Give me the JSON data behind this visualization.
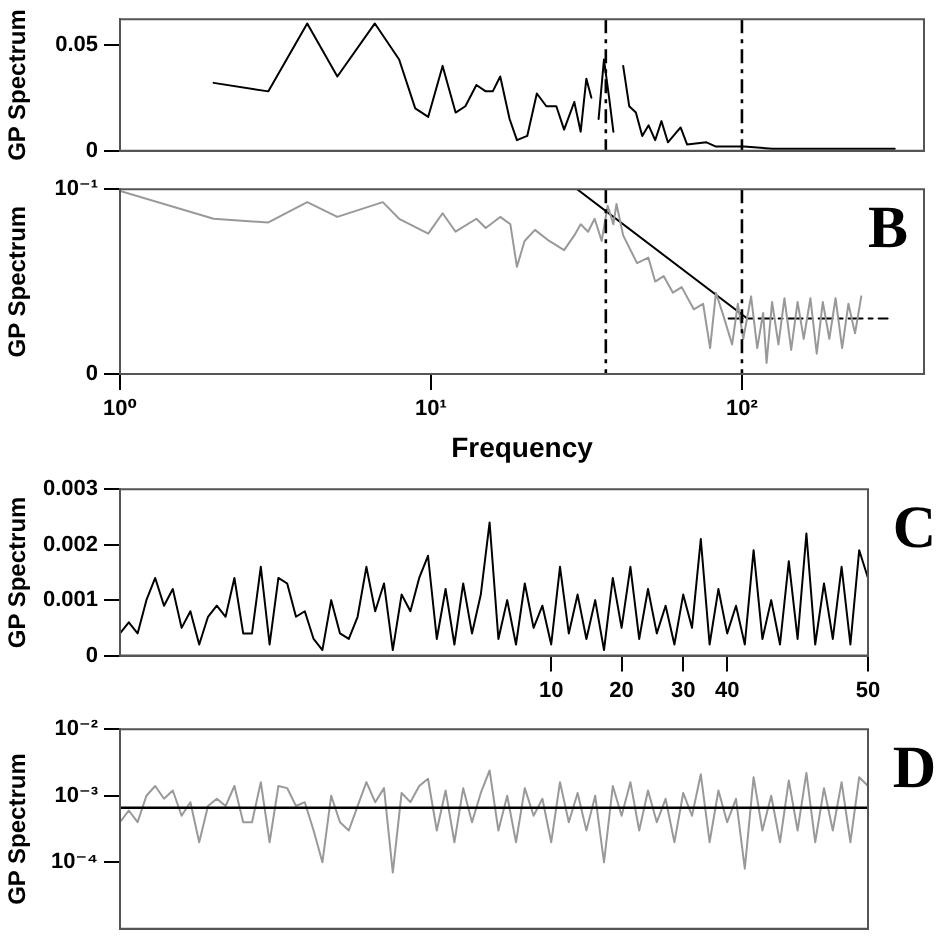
{
  "chart_data": [
    {
      "type": "line",
      "ylabel": "GP Spectrum",
      "log": "x",
      "xlim": [
        1,
        385
      ],
      "ylim": [
        0,
        0.062
      ],
      "yticks": [
        0,
        0.05
      ],
      "tick_labels": "y",
      "grid": false,
      "ref_lines": [
        {
          "axis": "x",
          "value": 36.5,
          "color": "#000000",
          "line_style": "dashed"
        },
        {
          "axis": "x",
          "value": 100,
          "color": "#000000",
          "line_style": "dashed"
        }
      ],
      "series": [
        {
          "color": "#000000",
          "x": [
            2,
            3,
            4,
            5,
            6.6,
            7.9,
            8.9,
            9.8,
            10.9,
            12,
            12.9,
            14,
            15,
            15.8,
            16.7,
            17.9,
            18.9,
            20.4,
            21.9,
            23.5,
            25.3,
            26.8,
            28.9,
            30.3,
            31.6,
            32.8,
            33.6,
            34.6,
            36,
            37.4,
            38.6,
            39.5,
            41.5,
            43.4,
            45.6,
            47.8,
            50.1,
            52.6,
            55.1,
            57.8,
            63.5,
            66.6,
            76.9,
            82.5,
            101.5,
            125,
            310
          ],
          "values": [
            0.032,
            0.028,
            0.06,
            0.035,
            0.06,
            0.043,
            0.02,
            0.016,
            0.04,
            0.018,
            0.021,
            0.031,
            0.028,
            0.028,
            0.035,
            0.015,
            0.005,
            0.007,
            0.027,
            0.021,
            0.021,
            0.01,
            0.023,
            0.009,
            0.034,
            0.025,
            null,
            0.015,
            0.043,
            0.025,
            0.009,
            null,
            0.04,
            0.021,
            0.018,
            0.007,
            0.012,
            0.005,
            0.014,
            0.004,
            0.011,
            0.003,
            0.004,
            0.002,
            0.002,
            0.001,
            0.001
          ]
        }
      ]
    },
    {
      "type": "line",
      "xlabel": "Frequency",
      "ylabel": "GP Spectrum",
      "log": "x",
      "xlim": [
        1,
        385
      ],
      "xticks": [
        {
          "value": 1,
          "label": "10⁰"
        },
        {
          "value": 10,
          "label": "10¹"
        },
        {
          "value": 100,
          "label": "10²"
        }
      ],
      "ylim": [
        0,
        0.1
      ],
      "yticks": [
        0,
        {
          "value": 0.1,
          "label": "10⁻¹"
        }
      ],
      "grid": false,
      "annotations": [
        "B"
      ],
      "ref_lines": [
        {
          "axis": "x",
          "value": 36.5,
          "color": "#000000",
          "line_style": "dashed"
        },
        {
          "axis": "x",
          "value": 100,
          "color": "#000000",
          "line_style": "dashed"
        }
      ],
      "series": [
        {
          "color": "#999999",
          "x": [
            1,
            2,
            3,
            4,
            5,
            7,
            7.9,
            9.8,
            10.9,
            12,
            14,
            15,
            16.7,
            18,
            18.9,
            20,
            21.6,
            24,
            26.8,
            28.9,
            30.3,
            32,
            33.6,
            35.4,
            37,
            38.6,
            39.5,
            41.5,
            46,
            50,
            52.6,
            56,
            60,
            64,
            70,
            75,
            79,
            82.5,
            87,
            93,
            97,
            101,
            107,
            112,
            117,
            120,
            125,
            131,
            137,
            144,
            151,
            158,
            166,
            174,
            182,
            191,
            200,
            210,
            220,
            231,
            242
          ],
          "values": [
            0.099,
            0.084,
            0.082,
            0.093,
            0.085,
            0.093,
            0.084,
            0.076,
            0.087,
            0.077,
            0.084,
            0.079,
            0.085,
            0.081,
            0.058,
            0.072,
            0.078,
            0.072,
            0.067,
            0.075,
            0.081,
            0.077,
            0.084,
            0.072,
            0.091,
            0.081,
            0.092,
            0.075,
            0.06,
            0.063,
            0.05,
            0.053,
            0.044,
            0.047,
            0.035,
            0.038,
            0.014,
            0.044,
            0.032,
            0.016,
            0.038,
            0.019,
            0.042,
            0.014,
            0.033,
            0.006,
            0.039,
            0.016,
            0.041,
            0.013,
            0.039,
            0.019,
            0.041,
            0.011,
            0.039,
            0.019,
            0.041,
            0.014,
            0.038,
            0.022,
            0.042
          ]
        },
        {
          "type": "line",
          "color": "#000000",
          "x": [
            29.5,
            104
          ],
          "values": [
            0.1,
            0.03
          ]
        },
        {
          "type": "line",
          "color": "#000000",
          "line_style": "dashed",
          "x": [
            90.6,
            294
          ],
          "values": [
            0.03,
            0.03
          ]
        }
      ]
    },
    {
      "type": "line",
      "ylabel": "GP Spectrum",
      "ylim": [
        0,
        0.003
      ],
      "yticks": [
        0,
        0.001,
        0.002,
        0.003
      ],
      "grid": false,
      "annotations": [
        "C"
      ],
      "categories": [
        null,
        null,
        null,
        null,
        null,
        null,
        null,
        null,
        null,
        null,
        null,
        null,
        null,
        null,
        null,
        null,
        null,
        null,
        null,
        null,
        null,
        null,
        null,
        null,
        null,
        null,
        null,
        null,
        null,
        null,
        null,
        null,
        null,
        null,
        null,
        null,
        null,
        null,
        null,
        null,
        null,
        null,
        null,
        null,
        null,
        null,
        null,
        null,
        null,
        "10",
        null,
        null,
        null,
        null,
        null,
        null,
        null,
        "20",
        null,
        null,
        null,
        null,
        null,
        null,
        "30",
        null,
        null,
        null,
        null,
        "40",
        null,
        null,
        null,
        null,
        null,
        null,
        null,
        null,
        null,
        null,
        null,
        null,
        null,
        null,
        null,
        "50"
      ],
      "series": [
        {
          "color": "#000000",
          "values": [
            0.0004,
            0.0006,
            0.0004,
            0.001,
            0.0014,
            0.0009,
            0.0012,
            0.0005,
            0.0008,
            0.0002,
            0.0007,
            0.0009,
            0.0007,
            0.0014,
            0.0004,
            0.0004,
            0.0016,
            0.0002,
            0.0014,
            0.0013,
            0.0007,
            0.0008,
            0.0003,
            0.0001,
            0.001,
            0.0004,
            0.0003,
            0.0007,
            0.0016,
            0.0008,
            0.0013,
            0.0001,
            0.0011,
            0.0008,
            0.0014,
            0.0018,
            0.0003,
            0.0012,
            0.0002,
            0.0013,
            0.0004,
            0.0011,
            0.0024,
            0.0003,
            0.001,
            0.0002,
            0.0013,
            0.0005,
            0.0009,
            0.0002,
            0.0016,
            0.0004,
            0.0011,
            0.0003,
            0.001,
            0.0001,
            0.0014,
            0.0005,
            0.0016,
            0.0003,
            0.0012,
            0.0004,
            0.0009,
            0.0002,
            0.0011,
            0.0005,
            0.0021,
            0.0002,
            0.0012,
            0.0004,
            0.0009,
            0.0002,
            0.0019,
            0.0003,
            0.001,
            0.0002,
            0.0017,
            0.0003,
            0.0022,
            0.0002,
            0.0013,
            0.0003,
            0.0016,
            0.0002,
            0.0019,
            0.0014
          ]
        }
      ]
    },
    {
      "type": "line",
      "ylabel": "GP Spectrum",
      "log": "y",
      "ylim": [
        1e-05,
        0.01
      ],
      "yticks": [
        {
          "value": 0.01,
          "label": "10⁻²"
        },
        {
          "value": 0.001,
          "label": "10⁻³"
        },
        {
          "value": 0.0001,
          "label": "10⁻⁴"
        }
      ],
      "tick_labels": "y",
      "grid": false,
      "annotations": [
        "D"
      ],
      "categories": [
        null,
        null,
        null,
        null,
        null,
        null,
        null,
        null,
        null,
        null,
        null,
        null,
        null,
        null,
        null,
        null,
        null,
        null,
        null,
        null,
        null,
        null,
        null,
        null,
        null,
        null,
        null,
        null,
        null,
        null,
        null,
        null,
        null,
        null,
        null,
        null,
        null,
        null,
        null,
        null,
        null,
        null,
        null,
        null,
        null,
        null,
        null,
        null,
        null,
        null,
        null,
        null,
        null,
        null,
        null,
        null,
        null,
        null,
        null,
        null,
        null,
        null,
        null,
        null,
        null,
        null,
        null,
        null,
        null,
        null,
        null,
        null,
        null,
        null,
        null,
        null,
        null,
        null,
        null,
        null,
        null,
        null,
        null,
        null,
        null,
        null
      ],
      "ref_lines": [
        {
          "axis": "y",
          "value": 0.00066,
          "color": "#000000"
        }
      ],
      "series": [
        {
          "color": "#999999",
          "values": [
            0.0004,
            0.0006,
            0.0004,
            0.001,
            0.0014,
            0.0009,
            0.0012,
            0.0005,
            0.0008,
            0.0002,
            0.0007,
            0.0009,
            0.0007,
            0.0014,
            0.0004,
            0.0004,
            0.0016,
            0.0002,
            0.0014,
            0.0013,
            0.0007,
            0.0008,
            0.0003,
            0.0001,
            0.001,
            0.0004,
            0.0003,
            0.0007,
            0.0016,
            0.0008,
            0.0013,
            7e-05,
            0.0011,
            0.0008,
            0.0014,
            0.0018,
            0.0003,
            0.0012,
            0.0002,
            0.0013,
            0.0004,
            0.0011,
            0.0024,
            0.0003,
            0.001,
            0.0002,
            0.0013,
            0.0005,
            0.0009,
            0.0002,
            0.0016,
            0.0004,
            0.0011,
            0.0003,
            0.001,
            0.0001,
            0.0014,
            0.0005,
            0.0016,
            0.0003,
            0.0012,
            0.0004,
            0.0009,
            0.0002,
            0.0011,
            0.0005,
            0.0021,
            0.0002,
            0.0012,
            0.0004,
            0.0009,
            8e-05,
            0.0019,
            0.0003,
            0.001,
            0.0002,
            0.0017,
            0.0003,
            0.0022,
            0.0002,
            0.0013,
            0.0003,
            0.0016,
            0.0002,
            0.0019,
            0.0014
          ]
        }
      ]
    }
  ]
}
